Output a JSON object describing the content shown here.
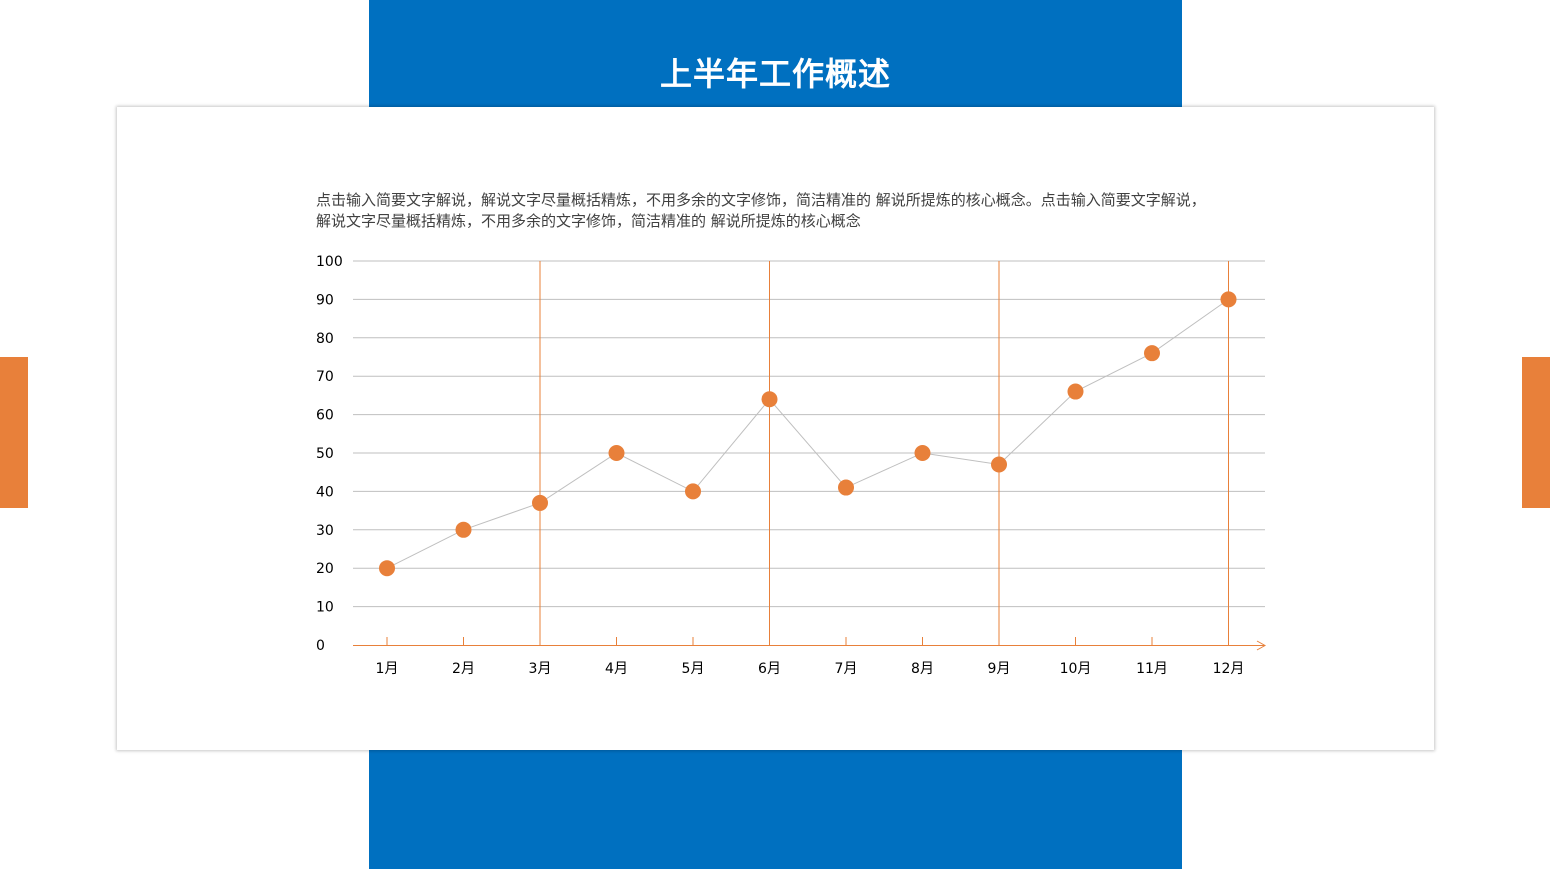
{
  "slide": {
    "title": "上半年工作概述",
    "description_lines": [
      "点击输入简要文字解说，解说文字尽量概括精炼，不用多余的文字修饰，简洁精准的  解说所提炼的核心概念。点击输入简要文字解说，",
      "解说文字尽量概括精炼，不用多余的文字修饰，简洁精准的 解说所提炼的核心概念"
    ]
  },
  "colors": {
    "brand_blue": "#0070c0",
    "accent_orange": "#e8803a",
    "gridline": "#bfbfbf",
    "series_line": "#bfbfbf"
  },
  "chart_data": {
    "type": "line",
    "categories": [
      "1月",
      "2月",
      "3月",
      "4月",
      "5月",
      "6月",
      "7月",
      "8月",
      "9月",
      "10月",
      "11月",
      "12月"
    ],
    "series": [
      {
        "values": [
          20,
          30,
          37,
          50,
          40,
          64,
          41,
          50,
          47,
          66,
          76,
          90
        ]
      }
    ],
    "ylim": [
      0,
      100
    ],
    "yticks": [
      0,
      10,
      20,
      30,
      40,
      50,
      60,
      70,
      80,
      90,
      100
    ],
    "highlight_categories": [
      "3月",
      "6月",
      "9月",
      "12月"
    ],
    "grid": "horizontal",
    "legend": "none",
    "marker": "filled-circle"
  }
}
